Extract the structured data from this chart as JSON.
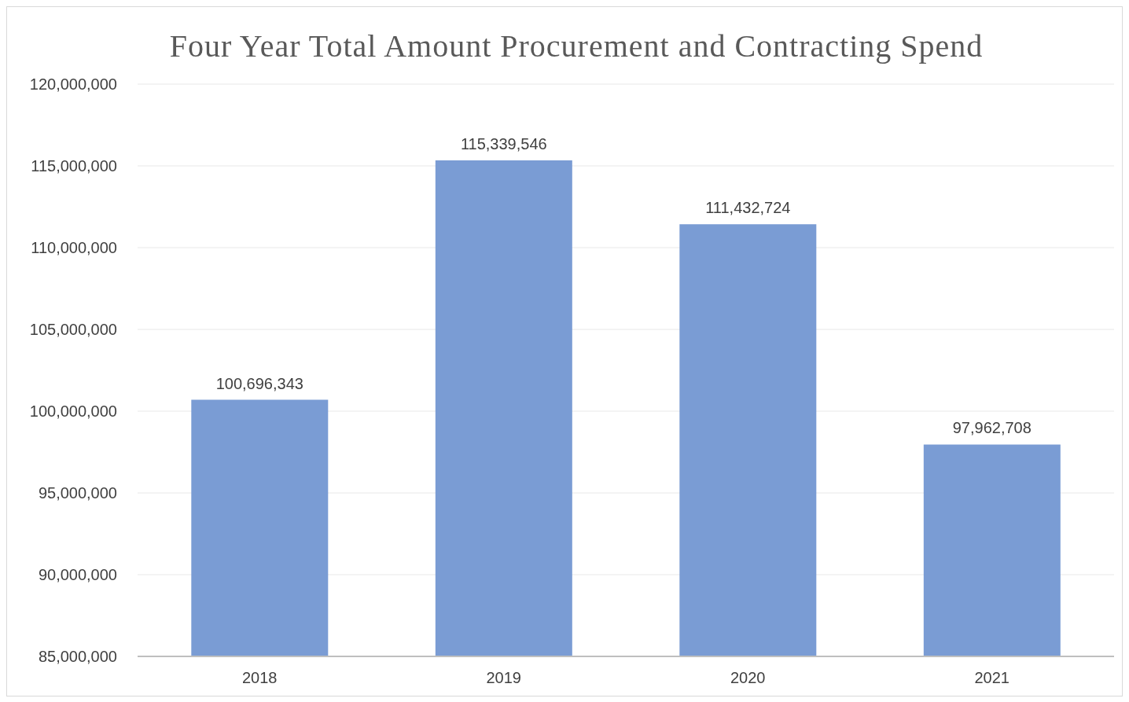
{
  "chart_data": {
    "type": "bar",
    "title": "Four Year Total Amount Procurement and Contracting Spend",
    "categories": [
      "2018",
      "2019",
      "2020",
      "2021"
    ],
    "values": [
      100696343,
      115339546,
      111432724,
      97962708
    ],
    "value_labels": [
      "100,696,343",
      "115,339,546",
      "111,432,724",
      "97,962,708"
    ],
    "color": "#7a9cd4",
    "ylim": [
      85000000,
      120000000
    ],
    "yticks": [
      {
        "value": 85000000,
        "label": "85,000,000"
      },
      {
        "value": 90000000,
        "label": "90,000,000"
      },
      {
        "value": 95000000,
        "label": "95,000,000"
      },
      {
        "value": 100000000,
        "label": "100,000,000"
      },
      {
        "value": 105000000,
        "label": "105,000,000"
      },
      {
        "value": 110000000,
        "label": "110,000,000"
      },
      {
        "value": 115000000,
        "label": "115,000,000"
      },
      {
        "value": 120000000,
        "label": "120,000,000"
      }
    ],
    "grid": "y"
  }
}
